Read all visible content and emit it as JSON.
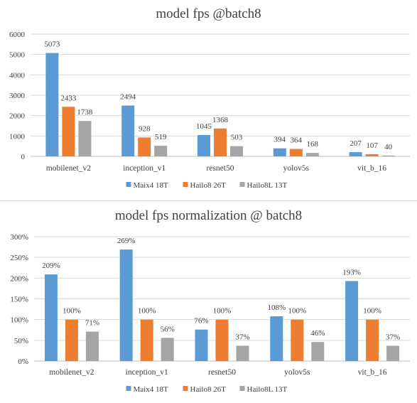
{
  "chart_data": [
    {
      "type": "bar",
      "title": "model fps @batch8",
      "categories": [
        "mobilenet_v2",
        "inception_v1",
        "resnet50",
        "yolov5s",
        "vit_b_16"
      ],
      "series": [
        {
          "name": "Maix4 18T",
          "color": "#5b9bd5",
          "values": [
            5073,
            2494,
            1045,
            394,
            207
          ],
          "labels": [
            "5073",
            "2494",
            "1045",
            "394",
            "207"
          ]
        },
        {
          "name": "Hailo8 26T",
          "color": "#ed7d31",
          "values": [
            2433,
            928,
            1368,
            364,
            107
          ],
          "labels": [
            "2433",
            "928",
            "1368",
            "364",
            "107"
          ]
        },
        {
          "name": "Hailo8L 13T",
          "color": "#a5a5a5",
          "values": [
            1738,
            519,
            503,
            168,
            40
          ],
          "labels": [
            "1738",
            "519",
            "503",
            "168",
            "40"
          ]
        }
      ],
      "ylim": [
        0,
        6000
      ],
      "yticks": [
        0,
        1000,
        2000,
        3000,
        4000,
        5000,
        6000
      ],
      "ytick_labels": [
        "0",
        "1000",
        "2000",
        "3000",
        "4000",
        "5000",
        "6000"
      ],
      "grid": true,
      "legend": "bottom"
    },
    {
      "type": "bar",
      "title": "model fps normalization @ batch8",
      "categories": [
        "mobilenet_v2",
        "inception_v1",
        "resnet50",
        "yolov5s",
        "vit_b_16"
      ],
      "series": [
        {
          "name": "Maix4 18T",
          "color": "#5b9bd5",
          "values": [
            209,
            269,
            76,
            108,
            193
          ],
          "labels": [
            "209%",
            "269%",
            "76%",
            "108%",
            "193%"
          ]
        },
        {
          "name": "Hailo8 26T",
          "color": "#ed7d31",
          "values": [
            100,
            100,
            100,
            100,
            100
          ],
          "labels": [
            "100%",
            "100%",
            "100%",
            "100%",
            "100%"
          ]
        },
        {
          "name": "Hailo8L 13T",
          "color": "#a5a5a5",
          "values": [
            71,
            56,
            37,
            46,
            37
          ],
          "labels": [
            "71%",
            "56%",
            "37%",
            "46%",
            "37%"
          ]
        }
      ],
      "ylim": [
        0,
        300
      ],
      "yticks": [
        0,
        50,
        100,
        150,
        200,
        250,
        300
      ],
      "ytick_labels": [
        "0%",
        "50%",
        "100%",
        "150%",
        "200%",
        "250%",
        "300%"
      ],
      "grid": true,
      "legend": "bottom"
    }
  ]
}
